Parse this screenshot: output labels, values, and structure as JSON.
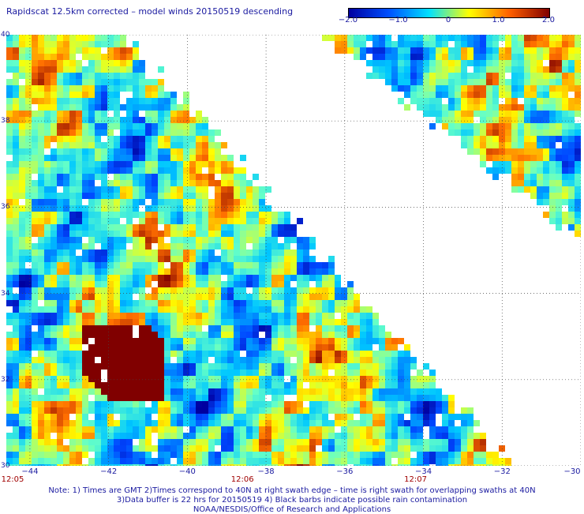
{
  "title": "Rapidscat 12.5km corrected – model winds 20150519 descending",
  "colorbar": {
    "ticks": [
      "−2.0",
      "−1.0",
      "0",
      "1.0",
      "2.0"
    ],
    "tick_values": [
      -2.0,
      -1.0,
      0,
      1.0,
      2.0
    ],
    "colors": [
      "#0000a0",
      "#0050ff",
      "#00e0ff",
      "#ffff00",
      "#ff6000",
      "#800000"
    ]
  },
  "map": {
    "lat_ticks": [
      "40",
      "38",
      "36",
      "34",
      "32",
      "30"
    ],
    "lat_values": [
      40,
      38,
      36,
      34,
      32,
      30
    ],
    "lon_ticks": [
      "−44",
      "−42",
      "−40",
      "−38",
      "−36",
      "−34",
      "−32",
      "−30"
    ],
    "lon_values": [
      -44,
      -42,
      -40,
      -38,
      -36,
      -34,
      -32,
      -30
    ],
    "lon_range": [
      -44.6,
      -30
    ],
    "lat_range": [
      30,
      40
    ],
    "time_labels": [
      {
        "text": "12:05",
        "lon": -44.6
      },
      {
        "text": "12:06",
        "lon": -38.6
      },
      {
        "text": "12:07",
        "lon": -34.2
      }
    ]
  },
  "notes": {
    "line1": "Note: 1) Times are GMT 2)Times correspond to 40N at right swath edge – time is right swath for overlapping swaths at 40N",
    "line2": "3)Data buffer is 22 hrs for 20150519 4) Black barbs indicate possible rain contamination",
    "line3": "NOAA/NESDIS/Office of Research and Applications"
  }
}
